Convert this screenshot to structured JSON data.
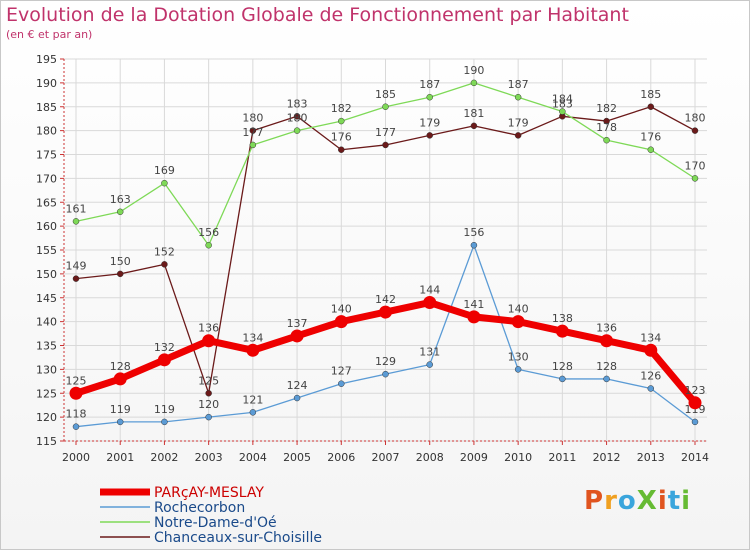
{
  "chart_data": {
    "type": "line",
    "title": "Evolution de la Dotation Globale de Fonctionnement par Habitant",
    "subtitle": "(en € et par an)",
    "categories": [
      "2000",
      "2001",
      "2002",
      "2003",
      "2004",
      "2005",
      "2006",
      "2007",
      "2008",
      "2009",
      "2010",
      "2011",
      "2012",
      "2013",
      "2014"
    ],
    "ylim": [
      115,
      195
    ],
    "yticks": [
      115,
      120,
      125,
      130,
      135,
      140,
      145,
      150,
      155,
      160,
      165,
      170,
      175,
      180,
      185,
      190,
      195
    ],
    "grid": true,
    "series": [
      {
        "name": "PARçAY-MESLAY",
        "color": "#ee0000",
        "values": [
          125,
          128,
          132,
          136,
          134,
          137,
          140,
          142,
          144,
          141,
          140,
          138,
          136,
          134,
          123
        ]
      },
      {
        "name": "Rochecorbon",
        "color": "#5b9bd5",
        "values": [
          118,
          119,
          119,
          120,
          121,
          124,
          127,
          129,
          131,
          156,
          130,
          128,
          128,
          126,
          119
        ]
      },
      {
        "name": "Notre-Dame-d'Oé",
        "color": "#7ed957",
        "values": [
          161,
          163,
          169,
          156,
          177,
          180,
          182,
          185,
          187,
          190,
          187,
          184,
          178,
          176,
          170
        ]
      },
      {
        "name": "Chanceaux-sur-Choisille",
        "color": "#6b1a1a",
        "values": [
          149,
          150,
          152,
          125,
          180,
          183,
          176,
          177,
          179,
          181,
          179,
          183,
          182,
          185,
          180
        ]
      }
    ],
    "legend_position": "bottom-left"
  },
  "logo": {
    "text": "ProXiti",
    "colors": [
      "#e0541f",
      "#f0a020",
      "#3aa5dc",
      "#66bb33",
      "#e0541f",
      "#3aa5dc",
      "#66bb33"
    ]
  }
}
